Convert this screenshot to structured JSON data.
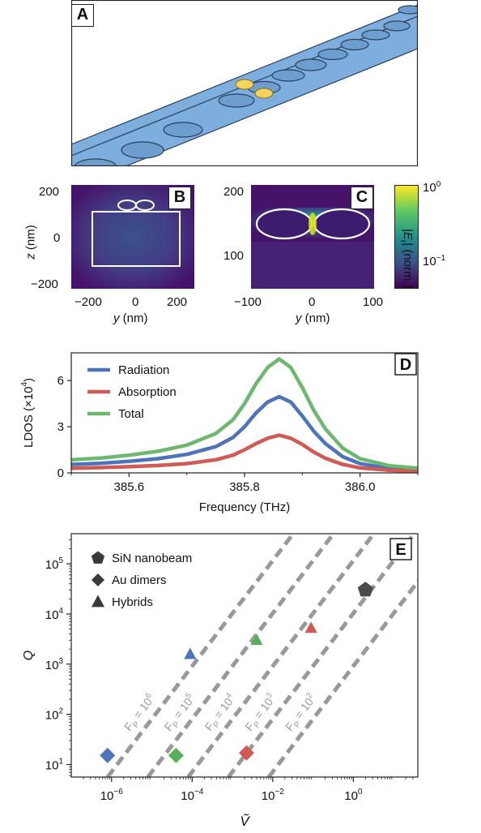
{
  "panels": {
    "a": "A",
    "b": "B",
    "c": "C",
    "d": "D",
    "e": "E"
  },
  "panel_b": {
    "ylabel": "z (nm)",
    "xlabel": "y (nm)",
    "xticks": [
      "−200",
      "0",
      "200"
    ],
    "yticks": [
      "200",
      "0",
      "−200"
    ]
  },
  "panel_c": {
    "xlabel": "y (nm)",
    "xticks": [
      "−100",
      "0",
      "100"
    ],
    "yticks": [
      "200",
      "100"
    ]
  },
  "colorbar": {
    "label": "|E_r| (norm.)",
    "top_tick": "10^0",
    "bottom_tick": "10^−1",
    "colors": [
      "#fde725",
      "#5ec962",
      "#21918c",
      "#3b528b",
      "#440154"
    ]
  },
  "chart_data": [
    {
      "type": "line",
      "panel": "D",
      "xlabel": "Frequency (THz)",
      "ylabel": "LDOS (×10^4)",
      "xlim": [
        385.5,
        386.1
      ],
      "ylim": [
        0,
        7.8
      ],
      "xticks": [
        "385.6",
        "385.8",
        "386.0"
      ],
      "yticks": [
        "0",
        "3",
        "6"
      ],
      "legend_position": "top-left",
      "series": [
        {
          "name": "Radiation",
          "color": "#4e73b8",
          "x": [
            385.5,
            385.55,
            385.6,
            385.65,
            385.7,
            385.75,
            385.78,
            385.8,
            385.82,
            385.84,
            385.86,
            385.88,
            385.9,
            385.92,
            385.94,
            385.97,
            386.0,
            386.05,
            386.1
          ],
          "y": [
            0.55,
            0.62,
            0.75,
            0.92,
            1.2,
            1.7,
            2.3,
            3.0,
            3.9,
            4.6,
            4.95,
            4.6,
            3.7,
            2.7,
            1.9,
            1.05,
            0.6,
            0.3,
            0.2
          ]
        },
        {
          "name": "Absorption",
          "color": "#d05a54",
          "x": [
            385.5,
            385.55,
            385.6,
            385.65,
            385.7,
            385.75,
            385.78,
            385.8,
            385.82,
            385.84,
            385.86,
            385.88,
            385.9,
            385.92,
            385.94,
            385.97,
            386.0,
            386.05,
            386.1
          ],
          "y": [
            0.3,
            0.34,
            0.4,
            0.48,
            0.6,
            0.85,
            1.15,
            1.5,
            1.9,
            2.25,
            2.45,
            2.25,
            1.85,
            1.35,
            0.95,
            0.55,
            0.32,
            0.17,
            0.1
          ]
        },
        {
          "name": "Total",
          "color": "#6bb86e",
          "x": [
            385.5,
            385.55,
            385.6,
            385.65,
            385.7,
            385.75,
            385.78,
            385.8,
            385.82,
            385.84,
            385.86,
            385.88,
            385.9,
            385.92,
            385.94,
            385.97,
            386.0,
            386.05,
            386.1
          ],
          "y": [
            0.85,
            0.96,
            1.15,
            1.4,
            1.8,
            2.55,
            3.45,
            4.5,
            5.8,
            6.85,
            7.4,
            6.85,
            5.55,
            4.05,
            2.85,
            1.6,
            0.92,
            0.47,
            0.3
          ]
        }
      ]
    },
    {
      "type": "scatter",
      "panel": "E",
      "xlabel": "Ṽ",
      "ylabel": "Q",
      "xscale": "log",
      "yscale": "log",
      "xlim_exp": [
        -7.0,
        1.6
      ],
      "ylim_exp": [
        0.75,
        5.6
      ],
      "xticks": [
        {
          "exp": -6,
          "label": "10^−6"
        },
        {
          "exp": -4,
          "label": "10^−4"
        },
        {
          "exp": -2,
          "label": "10^−2"
        },
        {
          "exp": 0,
          "label": "10^0"
        }
      ],
      "yticks": [
        {
          "exp": 1,
          "label": "10^1"
        },
        {
          "exp": 2,
          "label": "10^2"
        },
        {
          "exp": 3,
          "label": "10^3"
        },
        {
          "exp": 4,
          "label": "10^4"
        },
        {
          "exp": 5,
          "label": "10^5"
        }
      ],
      "legend_position": "top-left",
      "legend": [
        {
          "name": "SiN nanobeam",
          "marker": "pentagon"
        },
        {
          "name": "Au dimers",
          "marker": "diamond"
        },
        {
          "name": "Hybrids",
          "marker": "triangle"
        }
      ],
      "points": [
        {
          "marker": "pentagon",
          "color": "#4a4a4a",
          "x_exp": 0.3,
          "y_exp": 4.48
        },
        {
          "marker": "diamond",
          "color": "#4e73b8",
          "x_exp": -6.1,
          "y_exp": 1.18
        },
        {
          "marker": "diamond",
          "color": "#58b05c",
          "x_exp": -4.4,
          "y_exp": 1.18
        },
        {
          "marker": "diamond",
          "color": "#d05a54",
          "x_exp": -2.65,
          "y_exp": 1.23
        },
        {
          "marker": "triangle",
          "color": "#4e73b8",
          "x_exp": -4.05,
          "y_exp": 3.2
        },
        {
          "marker": "triangle",
          "color": "#58b05c",
          "x_exp": -2.4,
          "y_exp": 3.48
        },
        {
          "marker": "triangle",
          "color": "#d05a54",
          "x_exp": -1.05,
          "y_exp": 3.72
        }
      ],
      "purcell_lines": [
        {
          "label": "F_P = 10^6",
          "x0_exp": -6.1
        },
        {
          "label": "F_P = 10^5",
          "x0_exp": -5.1
        },
        {
          "label": "F_P = 10^4",
          "x0_exp": -4.1
        },
        {
          "label": "F_P = 10^3",
          "x0_exp": -3.1
        },
        {
          "label": "F_P = 10^2",
          "x0_exp": -2.1
        }
      ]
    }
  ]
}
